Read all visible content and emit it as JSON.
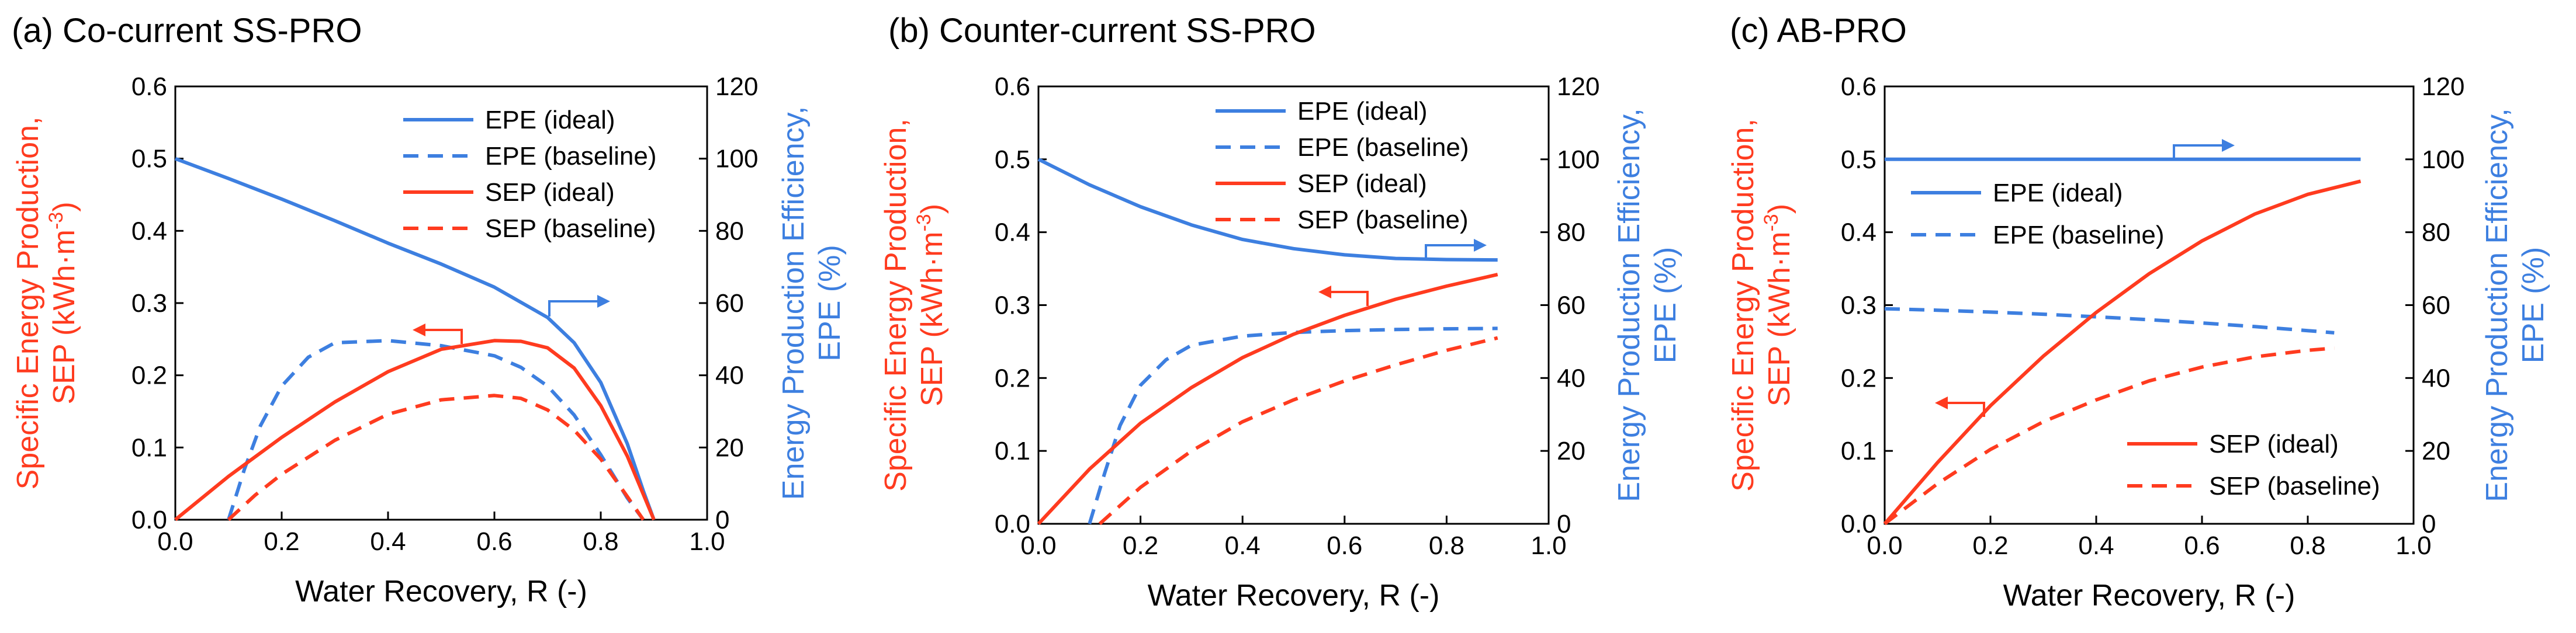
{
  "colors": {
    "sep": "#ff3b1f",
    "epe": "#3d7fe0",
    "axis": "#000000"
  },
  "chart_data": [
    {
      "type": "line",
      "title": "(a) Co-current SS-PRO",
      "xlabel": "Water Recovery, R (-)",
      "ylabel_left": [
        "Specific Energy Production,",
        "SEP (kWh·m",
        "-3",
        ")"
      ],
      "ylabel_right": [
        "Energy Production Efficiency,",
        "EPE (%)"
      ],
      "xlim": [
        0,
        1
      ],
      "ylim_left": [
        0,
        0.6
      ],
      "ylim_right": [
        0,
        120
      ],
      "xticks": [
        "0.0",
        "0.2",
        "0.4",
        "0.6",
        "0.8",
        "1.0"
      ],
      "yticks_left": [
        "0.0",
        "0.1",
        "0.2",
        "0.3",
        "0.4",
        "0.5",
        "0.6"
      ],
      "yticks_right": [
        "0",
        "20",
        "40",
        "60",
        "80",
        "100",
        "120"
      ],
      "legend": [
        {
          "label": "EPE (ideal)",
          "color": "epe",
          "dash": false
        },
        {
          "label": "EPE (baseline)",
          "color": "epe",
          "dash": true
        },
        {
          "label": "SEP (ideal)",
          "color": "sep",
          "dash": false
        },
        {
          "label": "SEP (baseline)",
          "color": "sep",
          "dash": true
        }
      ],
      "series": [
        {
          "name": "EPE (ideal)",
          "axis": "right",
          "color": "epe",
          "dash": false,
          "x": [
            0,
            0.1,
            0.2,
            0.3,
            0.4,
            0.5,
            0.6,
            0.7,
            0.75,
            0.8,
            0.85,
            0.88,
            0.9
          ],
          "y": [
            100,
            94.5,
            88.8,
            82.8,
            76.6,
            70.8,
            64.4,
            56,
            49,
            38,
            21,
            8,
            0
          ]
        },
        {
          "name": "EPE (baseline)",
          "axis": "right",
          "color": "epe",
          "dash": true,
          "x": [
            0.1,
            0.13,
            0.16,
            0.2,
            0.25,
            0.3,
            0.4,
            0.5,
            0.6,
            0.65,
            0.7,
            0.75,
            0.8,
            0.85,
            0.88
          ],
          "y": [
            0,
            14,
            26,
            37,
            45,
            49,
            49.6,
            48.2,
            45.4,
            42.2,
            37,
            29,
            18,
            6,
            0
          ]
        },
        {
          "name": "SEP (ideal)",
          "axis": "left",
          "color": "sep",
          "dash": false,
          "x": [
            0,
            0.1,
            0.2,
            0.3,
            0.4,
            0.5,
            0.6,
            0.65,
            0.7,
            0.75,
            0.8,
            0.85,
            0.9
          ],
          "y": [
            0,
            0.06,
            0.114,
            0.163,
            0.205,
            0.236,
            0.248,
            0.247,
            0.238,
            0.21,
            0.158,
            0.088,
            0
          ]
        },
        {
          "name": "SEP (baseline)",
          "axis": "left",
          "color": "sep",
          "dash": true,
          "x": [
            0.1,
            0.15,
            0.2,
            0.3,
            0.4,
            0.5,
            0.6,
            0.65,
            0.7,
            0.75,
            0.8,
            0.85,
            0.88
          ],
          "y": [
            0,
            0.034,
            0.063,
            0.11,
            0.146,
            0.166,
            0.172,
            0.168,
            0.152,
            0.124,
            0.084,
            0.032,
            0
          ]
        }
      ],
      "annotations": [
        {
          "arrow_toward": "left",
          "text": ""
        },
        {
          "arrow_toward": "right",
          "text": ""
        }
      ]
    },
    {
      "type": "line",
      "title": "(b) Counter-current SS-PRO",
      "xlabel": "Water Recovery, R (-)",
      "ylabel_left": [
        "Specific Energy Production,",
        "SEP (kWh·m",
        "-3",
        ")"
      ],
      "ylabel_right": [
        "Energy Production Efficiency,",
        "EPE (%)"
      ],
      "xlim": [
        0,
        1
      ],
      "ylim_left": [
        0,
        0.6
      ],
      "ylim_right": [
        0,
        120
      ],
      "xticks": [
        "0.0",
        "0.2",
        "0.4",
        "0.6",
        "0.8",
        "1.0"
      ],
      "yticks_left": [
        "0.0",
        "0.1",
        "0.2",
        "0.3",
        "0.4",
        "0.5",
        "0.6"
      ],
      "yticks_right": [
        "0",
        "20",
        "40",
        "60",
        "80",
        "100",
        "120"
      ],
      "legend": [
        {
          "label": "EPE (ideal)",
          "color": "epe",
          "dash": false
        },
        {
          "label": "EPE (baseline)",
          "color": "epe",
          "dash": true
        },
        {
          "label": "SEP (ideal)",
          "color": "sep",
          "dash": false
        },
        {
          "label": "SEP (baseline)",
          "color": "sep",
          "dash": true
        }
      ],
      "series": [
        {
          "name": "EPE (ideal)",
          "axis": "right",
          "color": "epe",
          "dash": false,
          "x": [
            0,
            0.1,
            0.2,
            0.3,
            0.4,
            0.5,
            0.6,
            0.7,
            0.8,
            0.9
          ],
          "y": [
            100,
            93,
            87,
            82,
            78,
            75.5,
            73.8,
            72.8,
            72.5,
            72.4
          ]
        },
        {
          "name": "EPE (baseline)",
          "axis": "right",
          "color": "epe",
          "dash": true,
          "x": [
            0.1,
            0.13,
            0.16,
            0.2,
            0.25,
            0.3,
            0.4,
            0.5,
            0.6,
            0.7,
            0.8,
            0.9
          ],
          "y": [
            0,
            14,
            27,
            38,
            45,
            49,
            51.5,
            52.5,
            53,
            53.3,
            53.5,
            53.6
          ]
        },
        {
          "name": "SEP (ideal)",
          "axis": "left",
          "color": "sep",
          "dash": false,
          "x": [
            0,
            0.1,
            0.2,
            0.3,
            0.4,
            0.5,
            0.6,
            0.7,
            0.8,
            0.9
          ],
          "y": [
            0,
            0.075,
            0.138,
            0.187,
            0.228,
            0.26,
            0.286,
            0.308,
            0.326,
            0.342
          ]
        },
        {
          "name": "SEP (baseline)",
          "axis": "left",
          "color": "sep",
          "dash": true,
          "x": [
            0.12,
            0.2,
            0.3,
            0.4,
            0.5,
            0.6,
            0.7,
            0.8,
            0.9
          ],
          "y": [
            0,
            0.05,
            0.1,
            0.14,
            0.17,
            0.196,
            0.218,
            0.238,
            0.255
          ]
        }
      ],
      "annotations": [
        {
          "arrow_toward": "left",
          "text": ""
        },
        {
          "arrow_toward": "right",
          "text": ""
        }
      ]
    },
    {
      "type": "line",
      "title": "(c) AB-PRO",
      "xlabel": "Water Recovery, R (-)",
      "ylabel_left": [
        "Specific Energy Production,",
        "SEP (kWh·m",
        "-3",
        ")"
      ],
      "ylabel_right": [
        "Energy Production Efficiency,",
        "EPE (%)"
      ],
      "xlim": [
        0,
        1
      ],
      "ylim_left": [
        0,
        0.6
      ],
      "ylim_right": [
        0,
        120
      ],
      "xticks": [
        "0.0",
        "0.2",
        "0.4",
        "0.6",
        "0.8",
        "1.0"
      ],
      "yticks_left": [
        "0.0",
        "0.1",
        "0.2",
        "0.3",
        "0.4",
        "0.5",
        "0.6"
      ],
      "yticks_right": [
        "0",
        "20",
        "40",
        "60",
        "80",
        "100",
        "120"
      ],
      "legend": [
        {
          "label": "EPE (ideal)",
          "color": "epe",
          "dash": false
        },
        {
          "label": "EPE (baseline)",
          "color": "epe",
          "dash": true
        },
        {
          "label": "SEP (ideal)",
          "color": "sep",
          "dash": false
        },
        {
          "label": "SEP (baseline)",
          "color": "sep",
          "dash": true
        }
      ],
      "series": [
        {
          "name": "EPE (ideal)",
          "axis": "right",
          "color": "epe",
          "dash": false,
          "x": [
            0,
            0.9
          ],
          "y": [
            100,
            100
          ]
        },
        {
          "name": "EPE (baseline)",
          "axis": "right",
          "color": "epe",
          "dash": true,
          "x": [
            0,
            0.1,
            0.2,
            0.3,
            0.4,
            0.5,
            0.6,
            0.7,
            0.8,
            0.85
          ],
          "y": [
            59,
            58.6,
            58.1,
            57.5,
            56.8,
            56,
            55.1,
            54.1,
            53,
            52.4
          ]
        },
        {
          "name": "SEP (ideal)",
          "axis": "left",
          "color": "sep",
          "dash": false,
          "x": [
            0,
            0.1,
            0.2,
            0.3,
            0.4,
            0.5,
            0.6,
            0.7,
            0.8,
            0.9
          ],
          "y": [
            0,
            0.084,
            0.162,
            0.23,
            0.29,
            0.343,
            0.388,
            0.425,
            0.452,
            0.47
          ]
        },
        {
          "name": "SEP (baseline)",
          "axis": "left",
          "color": "sep",
          "dash": true,
          "x": [
            0,
            0.1,
            0.2,
            0.3,
            0.4,
            0.5,
            0.6,
            0.7,
            0.8,
            0.85
          ],
          "y": [
            0,
            0.055,
            0.102,
            0.14,
            0.17,
            0.196,
            0.215,
            0.229,
            0.238,
            0.241
          ]
        }
      ],
      "annotations": [
        {
          "arrow_toward": "left",
          "text": ""
        },
        {
          "arrow_toward": "right",
          "text": ""
        }
      ]
    }
  ]
}
